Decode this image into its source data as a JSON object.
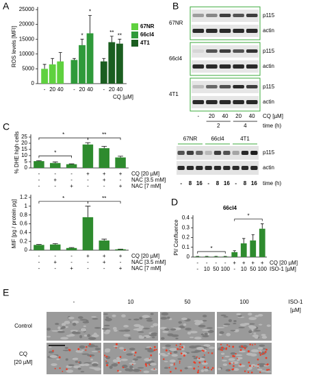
{
  "chart_data": [
    {
      "panel": "A",
      "type": "bar",
      "ylabel": "ROS levels [MFI]",
      "xlabel": "CQ [µM]",
      "categories": [
        "-",
        "20",
        "40"
      ],
      "series": [
        {
          "name": "67NR",
          "color": "#5fd13f",
          "values": [
            5000,
            6500,
            7500
          ],
          "errors": [
            1500,
            2000,
            3000
          ],
          "significance": [
            null,
            null,
            null
          ]
        },
        {
          "name": "66cl4",
          "color": "#2f9a3a",
          "values": [
            8000,
            13000,
            17000
          ],
          "errors": [
            500,
            2000,
            6000
          ],
          "significance": [
            null,
            "*",
            "*"
          ]
        },
        {
          "name": "4T1",
          "color": "#1b5e20",
          "values": [
            7500,
            14000,
            13500
          ],
          "errors": [
            1000,
            2000,
            1500
          ],
          "significance": [
            null,
            "**",
            "**"
          ]
        }
      ],
      "ylim": [
        0,
        25000
      ],
      "yticks": [
        0,
        5000,
        10000,
        15000,
        20000,
        25000
      ]
    },
    {
      "panel": "C",
      "type": "bar",
      "ylabel": "% DHE high cells",
      "color": "#2e8b2e",
      "values": [
        5.5,
        4,
        3,
        19,
        16,
        8.5
      ],
      "errors": [
        0.4,
        0.9,
        0.3,
        1.5,
        1.5,
        1
      ],
      "conditions": [
        {
          "name": "CQ [20 µM]",
          "values": [
            "-",
            "-",
            "-",
            "+",
            "+",
            "+"
          ]
        },
        {
          "name": "NAC [3.5 mM]",
          "values": [
            "-",
            "+",
            "-",
            "-",
            "+",
            "-"
          ]
        },
        {
          "name": "NAC [7 mM]",
          "values": [
            "-",
            "-",
            "+",
            "-",
            "-",
            "+"
          ]
        }
      ],
      "comparisons": [
        {
          "bars": [
            0,
            2
          ],
          "label": "*"
        },
        {
          "bars": [
            0,
            3
          ],
          "label": "*"
        },
        {
          "bars": [
            3,
            5
          ],
          "label": "**"
        }
      ],
      "ylim": [
        0,
        25
      ],
      "yticks": [
        0,
        5,
        10,
        15,
        20,
        25
      ]
    },
    {
      "type": "bar",
      "ylabel": "MIF [pg / protein pg]",
      "color": "#2e8b2e",
      "values": [
        0.12,
        0.13,
        0.05,
        0.75,
        0.22,
        0.02
      ],
      "errors": [
        0.01,
        0.02,
        0.01,
        0.25,
        0.03,
        0.005
      ],
      "conditions": [
        {
          "name": "CQ [20 µM]",
          "values": [
            "-",
            "-",
            "-",
            "+",
            "+",
            "+"
          ]
        },
        {
          "name": "NAC [3.5 mM]",
          "values": [
            "-",
            "+",
            "-",
            "-",
            "+",
            "-"
          ]
        },
        {
          "name": "NAC [7 mM]",
          "values": [
            "-",
            "-",
            "+",
            "-",
            "-",
            "+"
          ]
        }
      ],
      "comparisons": [
        {
          "bars": [
            0,
            3
          ],
          "label": "*"
        },
        {
          "bars": [
            3,
            5
          ],
          "label": "**"
        }
      ],
      "ylim": [
        0,
        1.2
      ],
      "yticks": [
        0,
        0.2,
        0.4,
        0.6,
        0.8,
        1,
        1.2
      ]
    },
    {
      "panel": "D",
      "type": "bar",
      "title": "66cl4",
      "ylabel": "PI/ Confluence",
      "color": "#2e8b2e",
      "values": [
        0.005,
        0.005,
        0.005,
        0.005,
        0.05,
        0.14,
        0.17,
        0.29
      ],
      "errors": [
        0.002,
        0.002,
        0.002,
        0.002,
        0.015,
        0.05,
        0.06,
        0.05
      ],
      "conditions": [
        {
          "name": "CQ [20 µM]",
          "values": [
            "-",
            "-",
            "-",
            "-",
            "+",
            "+",
            "+",
            "+"
          ]
        },
        {
          "name": "ISO-1 [µM]",
          "values": [
            "-",
            "10",
            "50",
            "100",
            "-",
            "10",
            "50",
            "100"
          ]
        }
      ],
      "comparisons": [
        {
          "bars": [
            0,
            3
          ],
          "label": "*"
        },
        {
          "bars": [
            4,
            7
          ],
          "label": "*"
        }
      ],
      "ylim": [
        0,
        0.4
      ],
      "yticks": [
        0,
        0.1,
        0.2,
        0.3,
        0.4
      ]
    }
  ],
  "blots": {
    "panel": "B",
    "cell_lines": [
      "67NR",
      "66cl4",
      "4T1"
    ],
    "proteins": [
      "p115",
      "actin"
    ],
    "cq_label": "CQ [µM]",
    "cq_lanes": [
      "-",
      "20",
      "40",
      "20",
      "40"
    ],
    "times": [
      "2",
      "4"
    ],
    "time_label": "time (h)",
    "second": {
      "cell_lines": [
        "67NR",
        "66cl4",
        "4T1"
      ],
      "proteins": [
        "p115",
        "actin"
      ],
      "lanes": [
        "-",
        "8",
        "16",
        "-",
        "8",
        "16",
        "-",
        "8",
        "16"
      ],
      "time_label": "time (h)"
    }
  },
  "micrographs": {
    "panel": "E",
    "columns": [
      "-",
      "10",
      "50",
      "100"
    ],
    "column_unit": [
      "ISO-1",
      "[µM]"
    ],
    "rows": [
      [
        "Control"
      ],
      [
        "CQ",
        "[20 µM]"
      ]
    ]
  }
}
